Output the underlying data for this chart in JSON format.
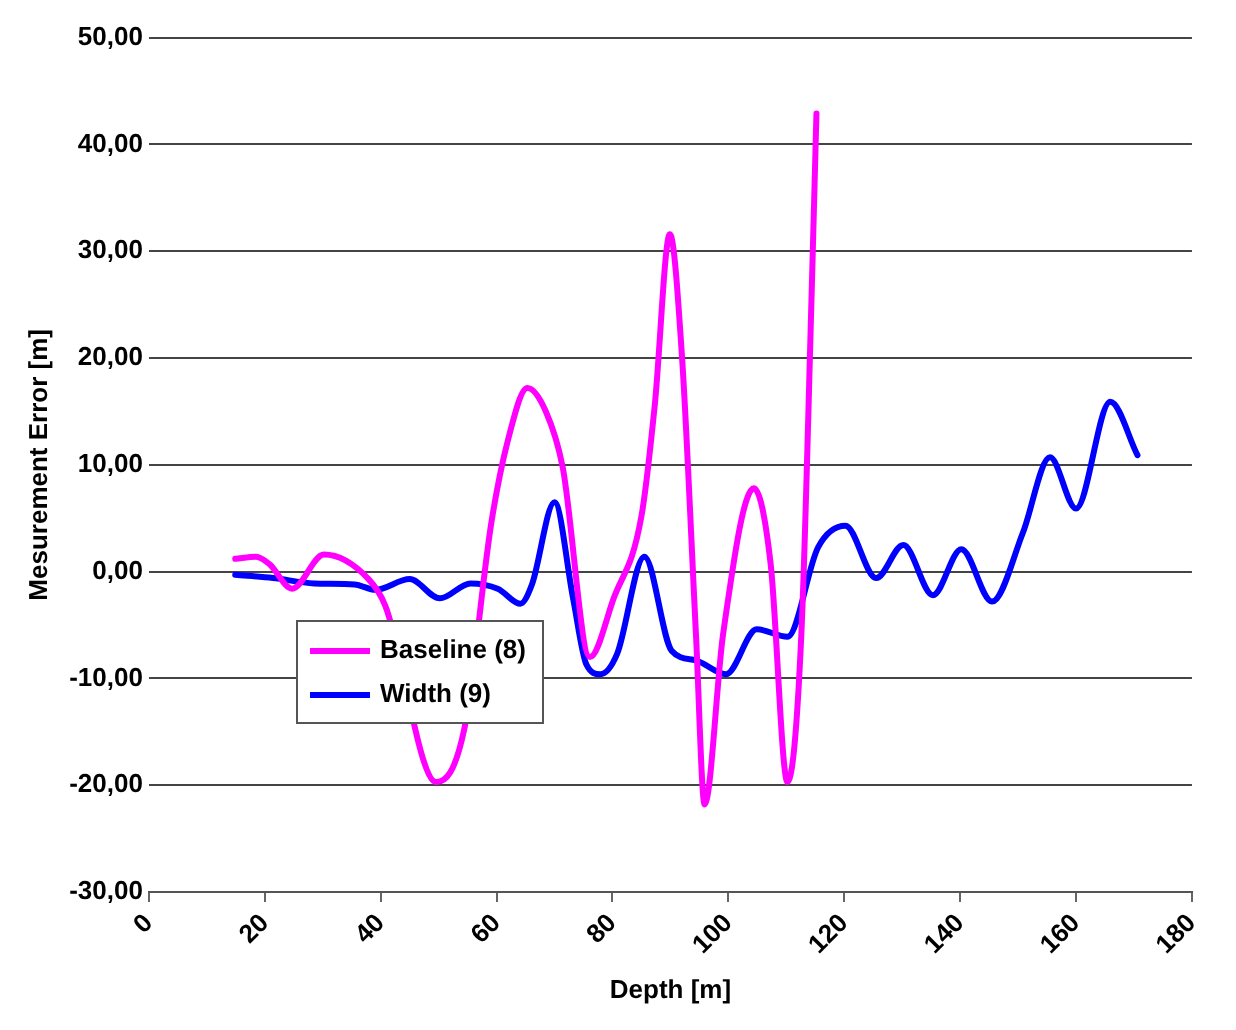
{
  "chart_data": {
    "type": "line",
    "xlabel": "Depth [m]",
    "ylabel": "Mesurement Error [m]",
    "xlim": [
      0,
      180
    ],
    "xticks": [
      0,
      20,
      40,
      60,
      80,
      100,
      120,
      140,
      160,
      180
    ],
    "ylim": [
      -30,
      50
    ],
    "yticks": [
      {
        "value": -30,
        "label": "-30,00"
      },
      {
        "value": -20,
        "label": "-20,00"
      },
      {
        "value": -10,
        "label": "-10,00"
      },
      {
        "value": 0,
        "label": "0,00"
      },
      {
        "value": 10,
        "label": "10,00"
      },
      {
        "value": 20,
        "label": "20,00"
      },
      {
        "value": 30,
        "label": "30,00"
      },
      {
        "value": 40,
        "label": "40,00"
      },
      {
        "value": 50,
        "label": "50,00"
      }
    ],
    "grid": "y",
    "legend": "bottom left",
    "marker": "none",
    "line_style": "solid",
    "series": [
      {
        "name": "Baseline (8)",
        "color": "#ff00ff",
        "x": [
          14.9,
          18.5,
          20.8,
          24.7,
          30.2,
          37.9,
          40.8,
          45,
          49.6,
          54.4,
          59.1,
          62,
          65.3,
          68.5,
          71.4,
          76.1,
          80.2,
          85,
          87.3,
          89.9,
          92,
          94.4,
          95.9,
          99.1,
          104.4,
          107.3,
          110.2,
          112.6,
          114.4,
          115.2
        ],
        "values": [
          1.2,
          1.4,
          0.7,
          -1.6,
          1.6,
          -0.7,
          -3.2,
          null,
          -19.7,
          -14.8,
          4.6,
          12.4,
          17.2,
          15,
          9.8,
          -8,
          -2.5,
          5.2,
          15.6,
          31.6,
          20.1,
          -5.8,
          -21.8,
          -5.8,
          7.8,
          0.7,
          -19.7,
          -5.8,
          26.6,
          42.9
        ]
      },
      {
        "name": "Width (9)",
        "color": "#0000ff",
        "x": [
          14.9,
          21.4,
          28.5,
          35.5,
          39.1,
          45,
          50.2,
          55.5,
          60.2,
          64.1,
          66.1,
          70,
          73.2,
          75.5,
          77.9,
          80.8,
          85.5,
          90.2,
          94.4,
          99.6,
          104.9,
          110.2,
          115.5,
          120.2,
          125.5,
          130.2,
          135.3,
          140.2,
          145.5,
          150.8,
          155.5,
          160,
          165.9,
          170.6
        ],
        "values": [
          -0.3,
          -0.6,
          -1.1,
          -1.2,
          -1.7,
          -0.7,
          -2.5,
          -1.1,
          -1.6,
          -3,
          -1.2,
          6.5,
          -2.5,
          -8.7,
          -9.6,
          -7.7,
          1.4,
          -7.4,
          -8.3,
          -9.6,
          -5.4,
          -6.1,
          2.3,
          4.3,
          -0.6,
          2.5,
          -2.2,
          2.1,
          -2.8,
          3.6,
          10.7,
          5.9,
          15.9,
          10.9
        ]
      }
    ]
  }
}
